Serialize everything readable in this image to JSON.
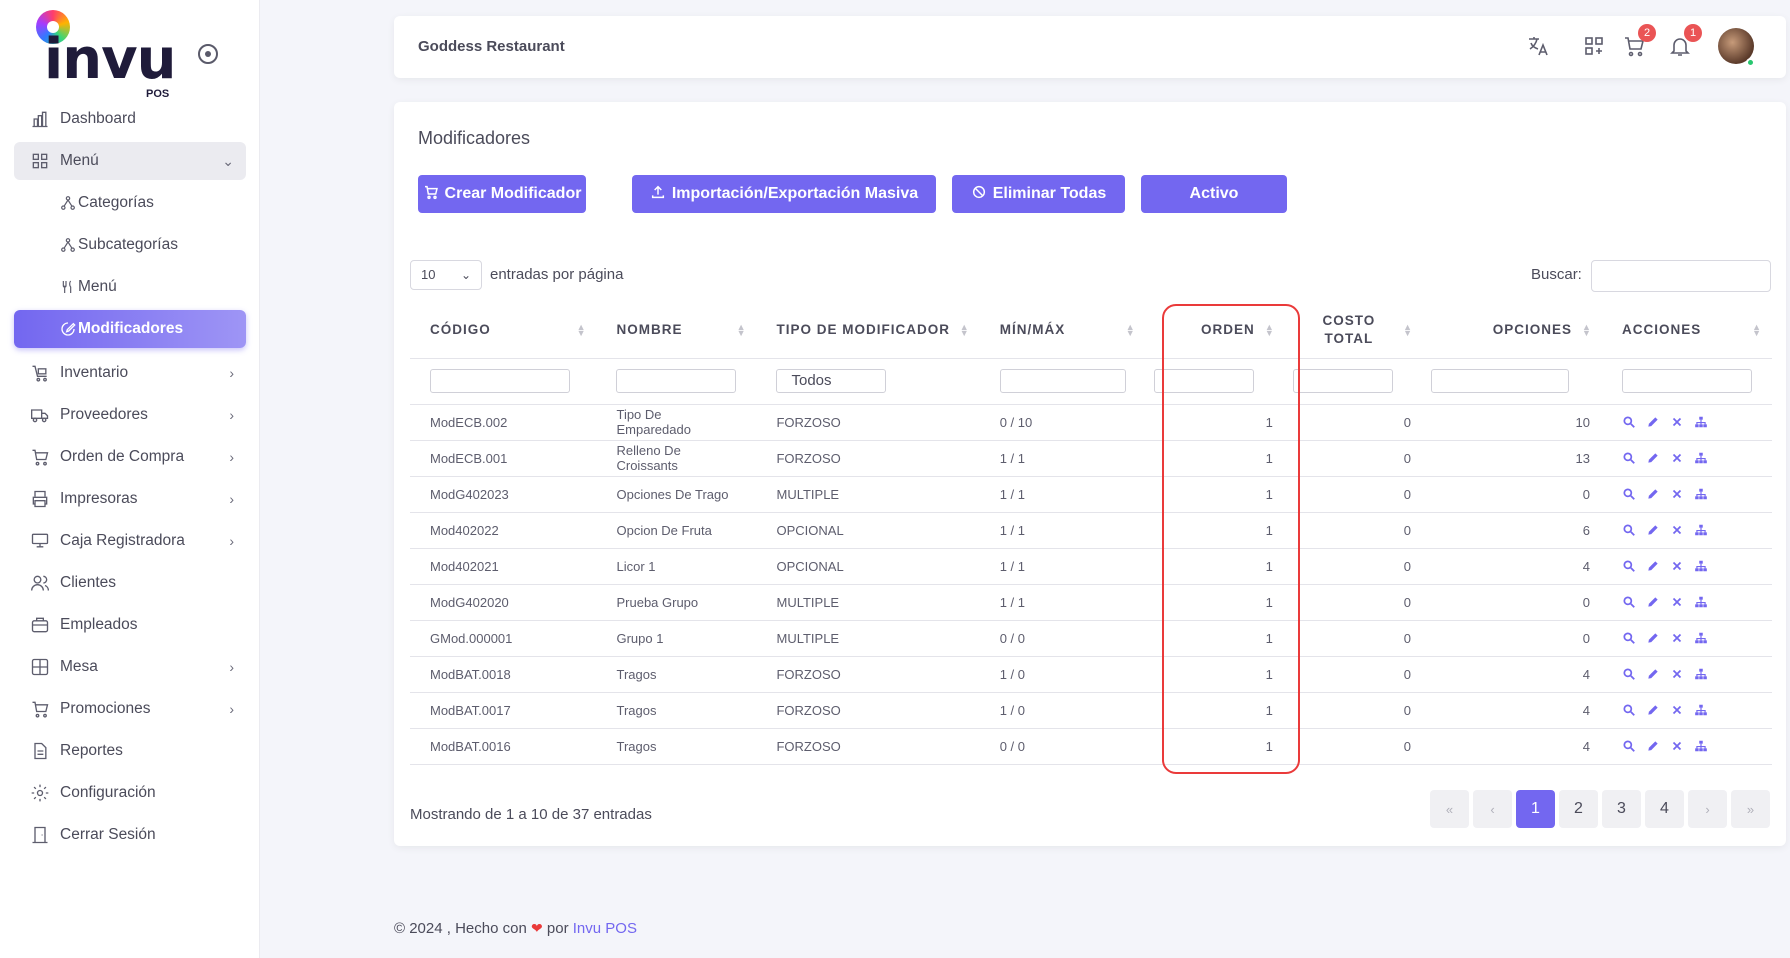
{
  "app": {
    "logo_text": "invu",
    "logo_sub": "POS"
  },
  "sidebar": {
    "items": [
      {
        "label": "Dashboard",
        "icon": "chart-bar-icon"
      },
      {
        "label": "Menú",
        "icon": "grid-icon",
        "expanded": true
      },
      {
        "label": "Categorías",
        "icon": "hierarchy-icon"
      },
      {
        "label": "Subcategorías",
        "icon": "hierarchy-icon"
      },
      {
        "label": "Menú",
        "icon": "fork-knife-icon"
      },
      {
        "label": "Modificadores",
        "icon": "edit-circle-icon",
        "active": true
      },
      {
        "label": "Inventario",
        "icon": "cart-box-icon"
      },
      {
        "label": "Proveedores",
        "icon": "truck-icon"
      },
      {
        "label": "Orden de Compra",
        "icon": "cart-icon"
      },
      {
        "label": "Impresoras",
        "icon": "printer-icon"
      },
      {
        "label": "Caja Registradora",
        "icon": "register-icon"
      },
      {
        "label": "Clientes",
        "icon": "users-icon"
      },
      {
        "label": "Empleados",
        "icon": "briefcase-icon"
      },
      {
        "label": "Mesa",
        "icon": "table-icon"
      },
      {
        "label": "Promociones",
        "icon": "cart-icon"
      },
      {
        "label": "Reportes",
        "icon": "file-icon"
      },
      {
        "label": "Configuración",
        "icon": "gear-icon"
      },
      {
        "label": "Cerrar Sesión",
        "icon": "door-icon"
      }
    ]
  },
  "topbar": {
    "restaurant": "Goddess Restaurant",
    "cart_badge": "2",
    "bell_badge": "1"
  },
  "page": {
    "title": "Modificadores",
    "buttons": {
      "create": "Crear Modificador",
      "import_export": "Importación/Exportación Masiva",
      "delete_all": "Eliminar Todas",
      "active": "Activo"
    },
    "page_length": "10",
    "page_length_label": "entradas por página",
    "search_label": "Buscar:",
    "filter_type_value": "Todos",
    "info": "Mostrando de 1 a 10 de 37 entradas",
    "pagination": [
      "«",
      "‹",
      "1",
      "2",
      "3",
      "4",
      "›",
      "»"
    ],
    "current_page": "1"
  },
  "table": {
    "headers": {
      "code": "CÓDIGO",
      "name": "NOMBRE",
      "type": "TIPO DE MODIFICADOR",
      "minmax": "MÍN/MÁX",
      "order": "ORDEN",
      "cost_line1": "COSTO",
      "cost_line2": "TOTAL",
      "options": "OPCIONES",
      "actions": "ACCIONES"
    },
    "rows": [
      {
        "code": "ModECB.002",
        "name": "Tipo De Emparedado",
        "type": "FORZOSO",
        "minmax": "0 / 10",
        "order": "1",
        "cost": "0",
        "options": "10"
      },
      {
        "code": "ModECB.001",
        "name": "Relleno De Croissants",
        "type": "FORZOSO",
        "minmax": "1 / 1",
        "order": "1",
        "cost": "0",
        "options": "13"
      },
      {
        "code": "ModG402023",
        "name": "Opciones De Trago",
        "type": "MULTIPLE",
        "minmax": "1 / 1",
        "order": "1",
        "cost": "0",
        "options": "0"
      },
      {
        "code": "Mod402022",
        "name": "Opcion De Fruta",
        "type": "OPCIONAL",
        "minmax": "1 / 1",
        "order": "1",
        "cost": "0",
        "options": "6"
      },
      {
        "code": "Mod402021",
        "name": "Licor 1",
        "type": "OPCIONAL",
        "minmax": "1 / 1",
        "order": "1",
        "cost": "0",
        "options": "4"
      },
      {
        "code": "ModG402020",
        "name": "Prueba Grupo",
        "type": "MULTIPLE",
        "minmax": "1 / 1",
        "order": "1",
        "cost": "0",
        "options": "0"
      },
      {
        "code": "GMod.000001",
        "name": "Grupo 1",
        "type": "MULTIPLE",
        "minmax": "0 / 0",
        "order": "1",
        "cost": "0",
        "options": "0"
      },
      {
        "code": "ModBAT.0018",
        "name": "Tragos",
        "type": "FORZOSO",
        "minmax": "1 / 0",
        "order": "1",
        "cost": "0",
        "options": "4"
      },
      {
        "code": "ModBAT.0017",
        "name": "Tragos",
        "type": "FORZOSO",
        "minmax": "1 / 0",
        "order": "1",
        "cost": "0",
        "options": "4"
      },
      {
        "code": "ModBAT.0016",
        "name": "Tragos",
        "type": "FORZOSO",
        "minmax": "0 / 0",
        "order": "1",
        "cost": "0",
        "options": "4"
      }
    ]
  },
  "footer": {
    "prefix": "© 2024 , Hecho con",
    "by": "por",
    "link": "Invu POS"
  },
  "colors": {
    "accent": "#7367f0",
    "highlight": "#ea3a3a",
    "badge": "#ea5455",
    "online": "#28c76f"
  }
}
